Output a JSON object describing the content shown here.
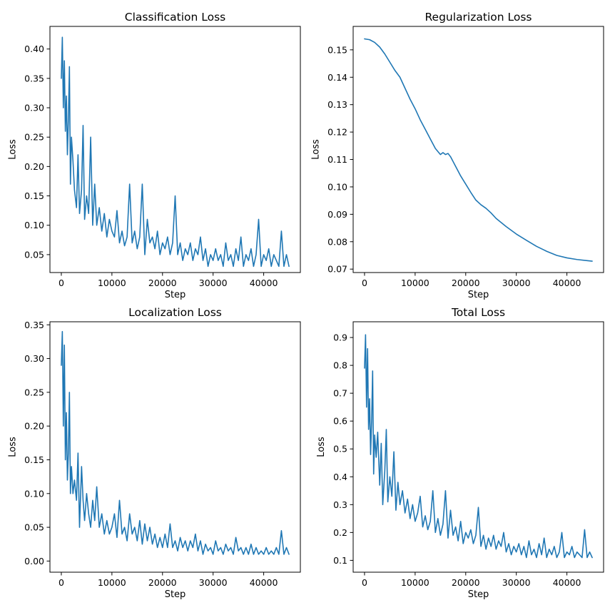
{
  "chart_data": [
    {
      "type": "line",
      "title": "Classification Loss",
      "xlabel": "Step",
      "ylabel": "Loss",
      "xlim": [
        -2250,
        47250
      ],
      "ylim": [
        0.0195,
        0.4385
      ],
      "xticks": [
        0,
        10000,
        20000,
        30000,
        40000
      ],
      "xtick_labels": [
        "0",
        "10000",
        "20000",
        "30000",
        "40000"
      ],
      "yticks": [
        0.05,
        0.1,
        0.15,
        0.2,
        0.25,
        0.3,
        0.35,
        0.4
      ],
      "ytick_labels": [
        "0.05",
        "0.10",
        "0.15",
        "0.20",
        "0.25",
        "0.30",
        "0.35",
        "0.40"
      ],
      "grid": false,
      "color": "#1f77b4",
      "series": [
        {
          "x": [
            0,
            200,
            400,
            600,
            800,
            1000,
            1200,
            1400,
            1600,
            1800,
            2000,
            2300,
            2600,
            3000,
            3300,
            3600,
            4000,
            4300,
            4600,
            5000,
            5400,
            5800,
            6200,
            6600,
            7000,
            7500,
            8000,
            8500,
            9000,
            9500,
            10000,
            10500,
            11000,
            11500,
            12000,
            12500,
            13000,
            13500,
            14000,
            14500,
            15000,
            15500,
            16000,
            16500,
            17000,
            17500,
            18000,
            18500,
            19000,
            19500,
            20000,
            20500,
            21000,
            21500,
            22000,
            22500,
            23000,
            23500,
            24000,
            24500,
            25000,
            25500,
            26000,
            26500,
            27000,
            27500,
            28000,
            28500,
            29000,
            29500,
            30000,
            30500,
            31000,
            31500,
            32000,
            32500,
            33000,
            33500,
            34000,
            34500,
            35000,
            35500,
            36000,
            36500,
            37000,
            37500,
            38000,
            38500,
            39000,
            39500,
            40000,
            40500,
            41000,
            41500,
            42000,
            42500,
            43000,
            43500,
            44000,
            44500,
            45000
          ],
          "y": [
            0.35,
            0.42,
            0.3,
            0.38,
            0.26,
            0.32,
            0.22,
            0.28,
            0.37,
            0.17,
            0.25,
            0.21,
            0.16,
            0.13,
            0.22,
            0.12,
            0.16,
            0.27,
            0.11,
            0.15,
            0.12,
            0.25,
            0.1,
            0.17,
            0.1,
            0.13,
            0.09,
            0.12,
            0.08,
            0.11,
            0.09,
            0.08,
            0.125,
            0.07,
            0.09,
            0.065,
            0.08,
            0.17,
            0.07,
            0.09,
            0.06,
            0.08,
            0.17,
            0.05,
            0.11,
            0.07,
            0.08,
            0.06,
            0.09,
            0.05,
            0.07,
            0.06,
            0.08,
            0.05,
            0.07,
            0.15,
            0.05,
            0.07,
            0.04,
            0.06,
            0.05,
            0.07,
            0.04,
            0.06,
            0.05,
            0.08,
            0.04,
            0.06,
            0.03,
            0.05,
            0.04,
            0.06,
            0.04,
            0.05,
            0.03,
            0.07,
            0.04,
            0.05,
            0.03,
            0.06,
            0.04,
            0.08,
            0.03,
            0.05,
            0.04,
            0.06,
            0.03,
            0.05,
            0.11,
            0.03,
            0.05,
            0.04,
            0.06,
            0.03,
            0.05,
            0.04,
            0.03,
            0.09,
            0.03,
            0.05,
            0.03
          ]
        }
      ]
    },
    {
      "type": "line",
      "title": "Regularization Loss",
      "xlabel": "Step",
      "ylabel": "Loss",
      "xlim": [
        -2250,
        47250
      ],
      "ylim": [
        0.06875,
        0.15855
      ],
      "xticks": [
        0,
        10000,
        20000,
        30000,
        40000
      ],
      "xtick_labels": [
        "0",
        "10000",
        "20000",
        "30000",
        "40000"
      ],
      "yticks": [
        0.07,
        0.08,
        0.09,
        0.1,
        0.11,
        0.12,
        0.13,
        0.14,
        0.15
      ],
      "ytick_labels": [
        "0.07",
        "0.08",
        "0.09",
        "0.10",
        "0.11",
        "0.12",
        "0.13",
        "0.14",
        "0.15"
      ],
      "grid": false,
      "color": "#1f77b4",
      "series": [
        {
          "x": [
            0,
            1000,
            2000,
            3000,
            4000,
            5000,
            6000,
            7000,
            8000,
            9000,
            10000,
            11000,
            12000,
            13000,
            14000,
            15000,
            15500,
            16000,
            16500,
            17000,
            18000,
            19000,
            20000,
            21000,
            22000,
            23000,
            24000,
            25000,
            26000,
            28000,
            30000,
            32000,
            34000,
            36000,
            38000,
            40000,
            42000,
            44000,
            45000
          ],
          "y": [
            0.154,
            0.1537,
            0.1527,
            0.151,
            0.1485,
            0.1455,
            0.1425,
            0.14,
            0.136,
            0.132,
            0.1285,
            0.1245,
            0.121,
            0.1175,
            0.114,
            0.1118,
            0.1125,
            0.1118,
            0.1122,
            0.111,
            0.1075,
            0.104,
            0.101,
            0.098,
            0.0952,
            0.0935,
            0.0922,
            0.0905,
            0.0885,
            0.0855,
            0.0828,
            0.0805,
            0.0783,
            0.0765,
            0.075,
            0.0741,
            0.0735,
            0.0731,
            0.0729
          ]
        }
      ]
    },
    {
      "type": "line",
      "title": "Localization Loss",
      "xlabel": "Step",
      "ylabel": "Loss",
      "xlim": [
        -2250,
        47250
      ],
      "ylim": [
        -0.0165,
        0.3545
      ],
      "xticks": [
        0,
        10000,
        20000,
        30000,
        40000
      ],
      "xtick_labels": [
        "0",
        "10000",
        "20000",
        "30000",
        "40000"
      ],
      "yticks": [
        0.0,
        0.05,
        0.1,
        0.15,
        0.2,
        0.25,
        0.3,
        0.35
      ],
      "ytick_labels": [
        "0.00",
        "0.05",
        "0.10",
        "0.15",
        "0.20",
        "0.25",
        "0.30",
        "0.35"
      ],
      "grid": false,
      "color": "#1f77b4",
      "series": [
        {
          "x": [
            0,
            200,
            400,
            600,
            800,
            1000,
            1200,
            1400,
            1600,
            1800,
            2000,
            2300,
            2600,
            3000,
            3300,
            3600,
            4000,
            4300,
            4600,
            5000,
            5400,
            5800,
            6200,
            6600,
            7000,
            7500,
            8000,
            8500,
            9000,
            9500,
            10000,
            10500,
            11000,
            11500,
            12000,
            12500,
            13000,
            13500,
            14000,
            14500,
            15000,
            15500,
            16000,
            16500,
            17000,
            17500,
            18000,
            18500,
            19000,
            19500,
            20000,
            20500,
            21000,
            21500,
            22000,
            22500,
            23000,
            23500,
            24000,
            24500,
            25000,
            25500,
            26000,
            26500,
            27000,
            27500,
            28000,
            28500,
            29000,
            29500,
            30000,
            30500,
            31000,
            31500,
            32000,
            32500,
            33000,
            33500,
            34000,
            34500,
            35000,
            35500,
            36000,
            36500,
            37000,
            37500,
            38000,
            38500,
            39000,
            39500,
            40000,
            40500,
            41000,
            41500,
            42000,
            42500,
            43000,
            43500,
            44000,
            44500,
            45000
          ],
          "y": [
            0.29,
            0.34,
            0.2,
            0.32,
            0.15,
            0.22,
            0.12,
            0.16,
            0.25,
            0.1,
            0.14,
            0.1,
            0.12,
            0.09,
            0.16,
            0.05,
            0.14,
            0.09,
            0.06,
            0.1,
            0.07,
            0.05,
            0.09,
            0.06,
            0.11,
            0.05,
            0.07,
            0.04,
            0.06,
            0.04,
            0.05,
            0.07,
            0.035,
            0.09,
            0.04,
            0.05,
            0.03,
            0.07,
            0.04,
            0.05,
            0.03,
            0.06,
            0.025,
            0.055,
            0.03,
            0.05,
            0.025,
            0.04,
            0.02,
            0.035,
            0.02,
            0.04,
            0.02,
            0.055,
            0.02,
            0.03,
            0.015,
            0.035,
            0.02,
            0.03,
            0.015,
            0.03,
            0.02,
            0.04,
            0.015,
            0.03,
            0.01,
            0.025,
            0.015,
            0.02,
            0.01,
            0.03,
            0.015,
            0.02,
            0.01,
            0.025,
            0.015,
            0.02,
            0.01,
            0.035,
            0.015,
            0.02,
            0.01,
            0.02,
            0.01,
            0.025,
            0.01,
            0.02,
            0.01,
            0.015,
            0.01,
            0.02,
            0.01,
            0.015,
            0.01,
            0.02,
            0.01,
            0.045,
            0.01,
            0.02,
            0.01
          ]
        }
      ]
    },
    {
      "type": "line",
      "title": "Total Loss",
      "xlabel": "Step",
      "ylabel": "Loss",
      "xlim": [
        -2250,
        47250
      ],
      "ylim": [
        0.0575,
        0.9565
      ],
      "xticks": [
        0,
        10000,
        20000,
        30000,
        40000
      ],
      "xtick_labels": [
        "0",
        "10000",
        "20000",
        "30000",
        "40000"
      ],
      "yticks": [
        0.1,
        0.2,
        0.3,
        0.4,
        0.5,
        0.6,
        0.7,
        0.8,
        0.9
      ],
      "ytick_labels": [
        "0.1",
        "0.2",
        "0.3",
        "0.4",
        "0.5",
        "0.6",
        "0.7",
        "0.8",
        "0.9"
      ],
      "grid": false,
      "color": "#1f77b4",
      "series": [
        {
          "x": [
            0,
            200,
            400,
            600,
            800,
            1000,
            1200,
            1400,
            1600,
            1800,
            2000,
            2300,
            2600,
            3000,
            3300,
            3600,
            4000,
            4300,
            4600,
            5000,
            5400,
            5800,
            6200,
            6600,
            7000,
            7500,
            8000,
            8500,
            9000,
            9500,
            10000,
            10500,
            11000,
            11500,
            12000,
            12500,
            13000,
            13500,
            14000,
            14500,
            15000,
            15500,
            16000,
            16500,
            17000,
            17500,
            18000,
            18500,
            19000,
            19500,
            20000,
            20500,
            21000,
            21500,
            22000,
            22500,
            23000,
            23500,
            24000,
            24500,
            25000,
            25500,
            26000,
            26500,
            27000,
            27500,
            28000,
            28500,
            29000,
            29500,
            30000,
            30500,
            31000,
            31500,
            32000,
            32500,
            33000,
            33500,
            34000,
            34500,
            35000,
            35500,
            36000,
            36500,
            37000,
            37500,
            38000,
            38500,
            39000,
            39500,
            40000,
            40500,
            41000,
            41500,
            42000,
            42500,
            43000,
            43500,
            44000,
            44500,
            45000
          ],
          "y": [
            0.79,
            0.91,
            0.65,
            0.86,
            0.57,
            0.68,
            0.48,
            0.6,
            0.78,
            0.41,
            0.55,
            0.47,
            0.56,
            0.37,
            0.52,
            0.3,
            0.42,
            0.57,
            0.31,
            0.4,
            0.33,
            0.49,
            0.28,
            0.38,
            0.3,
            0.35,
            0.27,
            0.32,
            0.25,
            0.3,
            0.24,
            0.27,
            0.33,
            0.22,
            0.26,
            0.21,
            0.24,
            0.35,
            0.2,
            0.25,
            0.19,
            0.23,
            0.35,
            0.18,
            0.28,
            0.19,
            0.22,
            0.17,
            0.24,
            0.16,
            0.2,
            0.18,
            0.21,
            0.16,
            0.19,
            0.29,
            0.15,
            0.19,
            0.14,
            0.18,
            0.15,
            0.19,
            0.14,
            0.17,
            0.15,
            0.2,
            0.13,
            0.16,
            0.12,
            0.15,
            0.13,
            0.16,
            0.12,
            0.15,
            0.11,
            0.17,
            0.12,
            0.14,
            0.11,
            0.16,
            0.12,
            0.18,
            0.11,
            0.14,
            0.12,
            0.15,
            0.11,
            0.13,
            0.2,
            0.11,
            0.13,
            0.12,
            0.15,
            0.11,
            0.13,
            0.12,
            0.11,
            0.21,
            0.11,
            0.13,
            0.11
          ]
        }
      ]
    }
  ]
}
